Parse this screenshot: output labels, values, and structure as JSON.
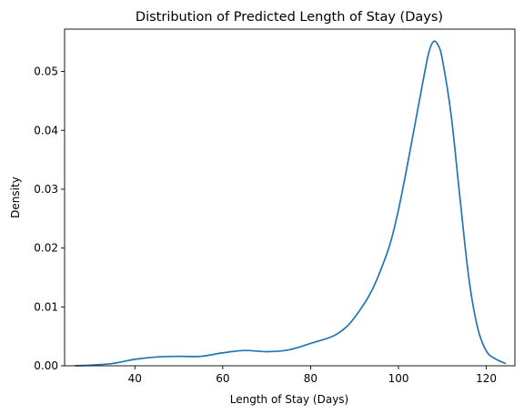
{
  "chart_data": {
    "type": "line",
    "title": "Distribution of Predicted Length of Stay (Days)",
    "xlabel": "Length of Stay (Days)",
    "ylabel": "Density",
    "xlim": [
      24,
      126.5
    ],
    "ylim": [
      0,
      0.0572
    ],
    "xticks": [
      40,
      60,
      80,
      100,
      120
    ],
    "xtick_labels": [
      "40",
      "60",
      "80",
      "100",
      "120"
    ],
    "yticks": [
      0,
      0.01,
      0.02,
      0.03,
      0.04,
      0.05
    ],
    "ytick_labels": [
      "0.00",
      "0.01",
      "0.02",
      "0.03",
      "0.04",
      "0.05"
    ],
    "grid": false,
    "color": "#1f77b4",
    "series": [
      {
        "x": [
          26.5,
          30,
          35,
          40,
          45,
          50,
          55,
          60,
          65,
          70,
          75,
          80,
          85,
          88,
          90,
          93,
          95,
          98,
          100,
          102,
          104,
          106,
          107,
          108,
          109,
          110,
          112,
          114,
          116,
          118,
          120,
          122,
          124.3
        ],
        "y": [
          0.0,
          0.0001,
          0.0004,
          0.0011,
          0.0015,
          0.0016,
          0.0016,
          0.0022,
          0.0026,
          0.0024,
          0.0027,
          0.0038,
          0.005,
          0.0065,
          0.0082,
          0.0115,
          0.0145,
          0.0205,
          0.0265,
          0.034,
          0.042,
          0.05,
          0.0535,
          0.0551,
          0.0545,
          0.052,
          0.0425,
          0.0285,
          0.015,
          0.0065,
          0.0025,
          0.0012,
          0.0004
        ]
      }
    ]
  }
}
